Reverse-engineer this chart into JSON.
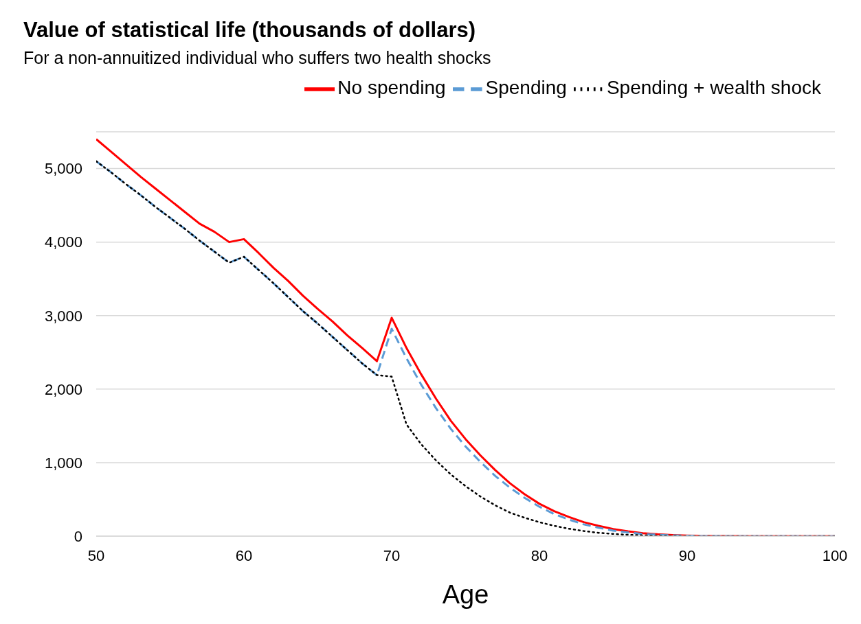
{
  "chart_data": {
    "type": "line",
    "title": "Value of statistical life (thousands of dollars)",
    "subtitle": "For a non-annuitized individual who suffers two health shocks",
    "xlabel": "Age",
    "x": [
      50,
      51,
      52,
      53,
      54,
      55,
      56,
      57,
      58,
      59,
      60,
      61,
      62,
      63,
      64,
      65,
      66,
      67,
      68,
      69,
      70,
      71,
      72,
      73,
      74,
      75,
      76,
      77,
      78,
      79,
      80,
      81,
      82,
      83,
      84,
      85,
      86,
      87,
      88,
      89,
      90,
      91,
      92,
      93,
      94,
      95,
      96,
      97,
      98,
      99,
      100
    ],
    "series": [
      {
        "name": "No spending",
        "color": "#ff0000",
        "line_style": "solid",
        "values": [
          5400,
          5230,
          5060,
          4890,
          4730,
          4570,
          4410,
          4250,
          4140,
          4000,
          4040,
          3850,
          3650,
          3470,
          3270,
          3090,
          2920,
          2730,
          2560,
          2380,
          2970,
          2560,
          2200,
          1870,
          1570,
          1320,
          1100,
          900,
          720,
          570,
          440,
          340,
          260,
          190,
          140,
          95,
          65,
          40,
          25,
          15,
          8,
          5,
          3,
          2,
          1,
          0,
          0,
          0,
          0,
          0,
          0
        ]
      },
      {
        "name": "Spending",
        "color": "#5b9bd5",
        "line_style": "dashed",
        "values": [
          5100,
          4950,
          4790,
          4640,
          4480,
          4330,
          4180,
          4020,
          3870,
          3720,
          3800,
          3620,
          3440,
          3250,
          3060,
          2890,
          2710,
          2530,
          2350,
          2190,
          2820,
          2420,
          2060,
          1740,
          1460,
          1220,
          1010,
          820,
          660,
          520,
          400,
          300,
          225,
          160,
          115,
          75,
          50,
          30,
          18,
          10,
          5,
          3,
          2,
          1,
          0,
          0,
          0,
          0,
          0,
          0,
          0
        ]
      },
      {
        "name": "Spending + wealth shock",
        "color": "#000000",
        "line_style": "dotted",
        "values": [
          5100,
          4950,
          4790,
          4640,
          4480,
          4330,
          4180,
          4020,
          3870,
          3720,
          3800,
          3620,
          3440,
          3250,
          3060,
          2890,
          2710,
          2530,
          2350,
          2190,
          2170,
          1520,
          1250,
          1030,
          840,
          680,
          540,
          420,
          320,
          250,
          190,
          140,
          100,
          70,
          45,
          30,
          18,
          10,
          5,
          3,
          0,
          0,
          0,
          0,
          0,
          0,
          0,
          0,
          0,
          0,
          0
        ]
      }
    ],
    "xlim": [
      50,
      100
    ],
    "xticks": [
      50,
      60,
      70,
      80,
      90,
      100
    ],
    "ylim": [
      0,
      5500
    ],
    "yticks": [
      {
        "value": 0,
        "label": "0"
      },
      {
        "value": 1000,
        "label": "1,000"
      },
      {
        "value": 2000,
        "label": "2,000"
      },
      {
        "value": 3000,
        "label": "3,000"
      },
      {
        "value": 4000,
        "label": "4,000"
      },
      {
        "value": 5000,
        "label": "5,000"
      }
    ],
    "grid": "y",
    "legend": "top right",
    "marker": "none"
  }
}
